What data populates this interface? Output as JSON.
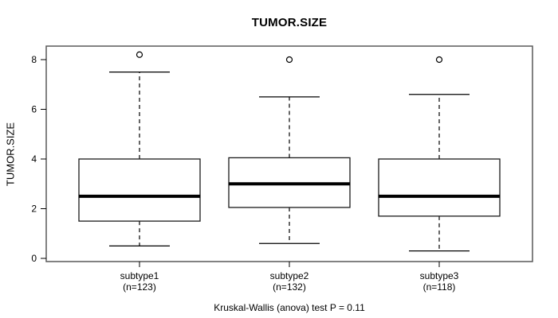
{
  "chart_data": {
    "type": "boxplot",
    "title": "TUMOR.SIZE",
    "ylabel": "TUMOR.SIZE",
    "xlabel": "",
    "footer": "Kruskal-Wallis (anova) test P = 0.11",
    "ylim": [
      0,
      8.6
    ],
    "yticks": [
      0,
      2,
      4,
      6,
      8
    ],
    "grid": "off",
    "legend": "none",
    "categories": [
      "subtype1",
      "subtype2",
      "subtype3"
    ],
    "category_sublabels": [
      "(n=123)",
      "(n=132)",
      "(n=118)"
    ],
    "series": [
      {
        "name": "subtype1",
        "n": 123,
        "whisker_low": 0.5,
        "q1": 1.5,
        "median": 2.5,
        "q3": 4.0,
        "whisker_high": 7.5,
        "outliers": [
          8.2
        ]
      },
      {
        "name": "subtype2",
        "n": 132,
        "whisker_low": 0.6,
        "q1": 2.05,
        "median": 3.0,
        "q3": 4.05,
        "whisker_high": 6.5,
        "outliers": [
          8.0
        ]
      },
      {
        "name": "subtype3",
        "n": 118,
        "whisker_low": 0.3,
        "q1": 1.7,
        "median": 2.5,
        "q3": 4.0,
        "whisker_high": 6.6,
        "outliers": [
          8.0
        ]
      }
    ],
    "colors": {
      "line": "#000000",
      "border": "#595959",
      "background": "#ffffff",
      "box_fill": "#ffffff"
    }
  }
}
